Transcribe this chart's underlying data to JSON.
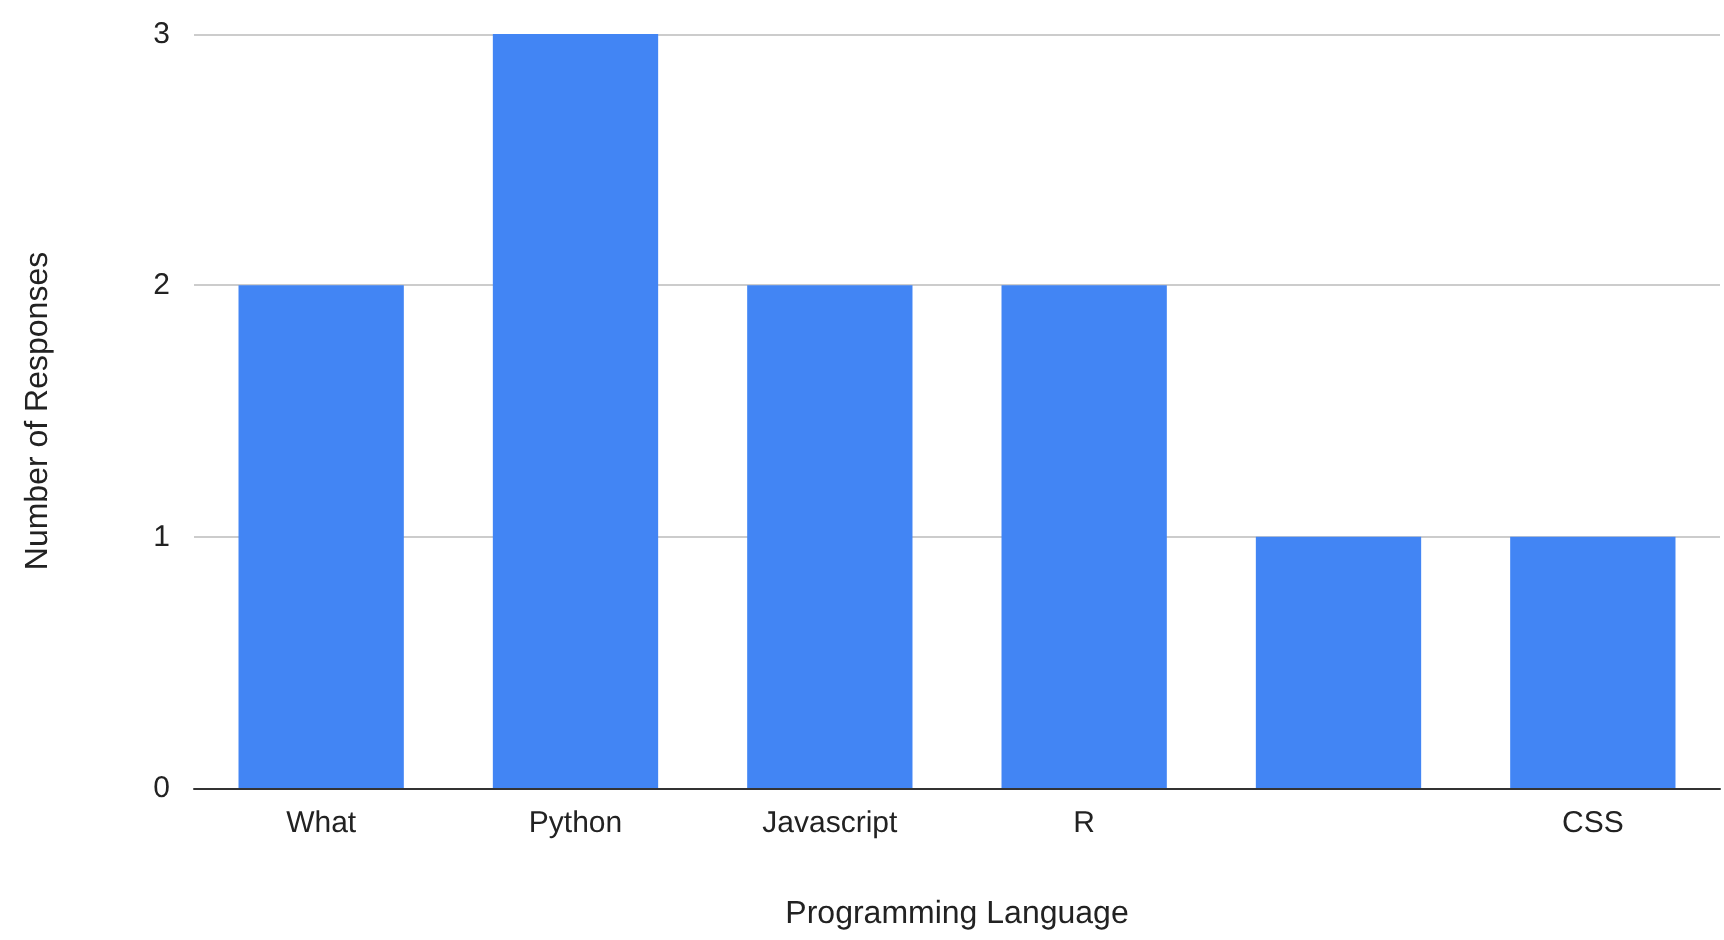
{
  "chart_data": {
    "type": "bar",
    "categories": [
      "What",
      "Python",
      "Javascript",
      "R",
      null,
      "CSS"
    ],
    "values": [
      2,
      3,
      2,
      2,
      1,
      1
    ],
    "color": "#4285f4",
    "xlabel": "Programming Language",
    "ylabel": "Number of Responses",
    "ylim": [
      0,
      3
    ],
    "yticks": [
      0,
      1,
      2,
      3
    ],
    "grid": "y"
  }
}
